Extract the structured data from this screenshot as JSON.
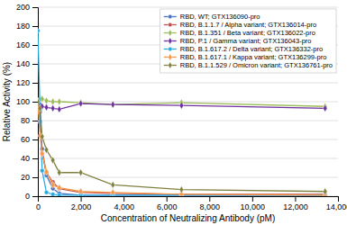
{
  "chart_data": {
    "type": "line",
    "xlabel": "Concentration of Neutralizing Antibody (pM)",
    "ylabel": "Relative Activity (%)",
    "x": [
      0,
      100,
      200,
      400,
      700,
      1000,
      2000,
      3500,
      6700,
      13400
    ],
    "xlim": [
      0,
      14000
    ],
    "ylim": [
      0,
      200
    ],
    "xticks": [
      0,
      {
        "value": 2000,
        "label": "2,000"
      },
      {
        "value": 4000,
        "label": "4,000"
      },
      {
        "value": 6000,
        "label": "6,000"
      },
      {
        "value": 8000,
        "label": "8,000"
      },
      {
        "value": 10000,
        "label": "10,000"
      },
      {
        "value": 12000,
        "label": "12,000"
      },
      {
        "value": 14000,
        "label": "14,000"
      }
    ],
    "yticks": [
      0,
      20,
      40,
      60,
      80,
      100,
      120,
      140,
      160,
      180,
      200
    ],
    "grid": "y",
    "legend": "upper right",
    "series": [
      {
        "name": "RBD, WT; GTX136090-pro",
        "color": "#4472C4",
        "marker": "circle",
        "values": [
          100,
          79,
          50,
          22,
          8,
          3,
          1,
          1,
          1,
          1
        ]
      },
      {
        "name": "RBD, B.1.1.7 / Alpha variant; GTX136014-pro",
        "color": "#C0504D",
        "marker": "circle",
        "values": [
          100,
          89,
          45,
          25,
          15,
          8,
          4,
          3,
          2,
          2
        ]
      },
      {
        "name": "RBD, B.1.351 / Beta variant; GTX136022-pro",
        "color": "#9BBB59",
        "marker": "diamond",
        "values": [
          101,
          102,
          103,
          101,
          100,
          100,
          99,
          97,
          99,
          95
        ]
      },
      {
        "name": "RBD, P.1 / Gamma variant; GTX136043-pro",
        "color": "#7030A0",
        "marker": "diamond",
        "values": [
          100,
          97,
          95,
          94,
          93,
          92,
          98,
          97,
          96,
          93
        ]
      },
      {
        "name": "RBD, B.1.617.2 / Delta variant; GTX136332-pro",
        "color": "#29ABE2",
        "marker": "circle",
        "values": [
          175,
          91,
          27,
          4,
          2,
          1,
          1,
          1,
          1,
          1
        ]
      },
      {
        "name": "RBD, B.1.617.1 / Kappa variant; GTX136299-pro",
        "color": "#F79646",
        "marker": "diamond",
        "values": [
          100,
          64,
          45,
          26,
          12,
          9,
          5,
          4,
          2,
          1
        ]
      },
      {
        "name": "RBD, B.1.1.529 / Omicron variant; GTX136761-pro",
        "color": "#808040",
        "marker": "diamond",
        "values": [
          100,
          93,
          63,
          49,
          38,
          25,
          25,
          12,
          7,
          5
        ]
      }
    ]
  }
}
